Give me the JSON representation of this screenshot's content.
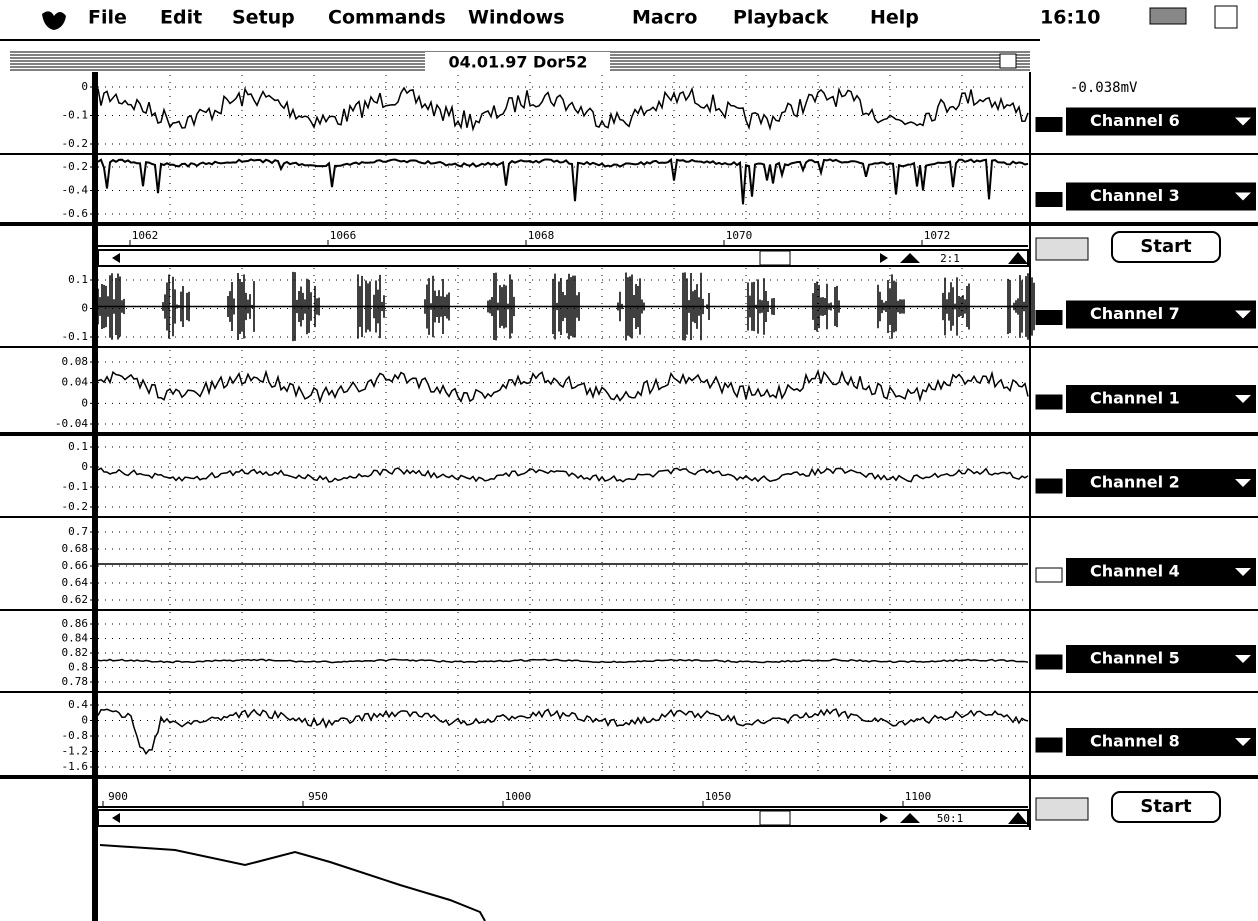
{
  "menu": {
    "items": [
      "File",
      "Edit",
      "Setup",
      "Commands",
      "Windows",
      "Macro",
      "Playback",
      "Help"
    ],
    "clock": "16:10"
  },
  "window": {
    "title": "04.01.97 Dor52"
  },
  "readout": "-0.038mV",
  "channels": [
    {
      "name": "Channel 6",
      "ticks": [
        "0",
        "-0.1",
        "-0.2"
      ]
    },
    {
      "name": "Channel 3",
      "ticks": [
        "-0.2",
        "-0.4",
        "-0.6"
      ]
    },
    {
      "name": "Channel 7",
      "ticks": [
        "0.1",
        "0",
        "-0.1"
      ]
    },
    {
      "name": "Channel 1",
      "ticks": [
        "0.08",
        "0.04",
        "0",
        "-0.04"
      ]
    },
    {
      "name": "Channel 2",
      "ticks": [
        "0.1",
        "0",
        "-0.1",
        "-0.2"
      ]
    },
    {
      "name": "Channel 4",
      "ticks": [
        "0.7",
        "0.68",
        "0.66",
        "0.64",
        "0.62"
      ]
    },
    {
      "name": "Channel 5",
      "ticks": [
        "0.86",
        "0.84",
        "0.82",
        "0.8",
        "0.78"
      ]
    },
    {
      "name": "Channel 8",
      "ticks": [
        "0.4",
        "0",
        "-0.8",
        "-1.2",
        "-1.6"
      ]
    }
  ],
  "time_axes": [
    {
      "labels": [
        "1062",
        "1066",
        "1068",
        "1070",
        "1072"
      ],
      "ratio": "2:1",
      "button": "Start"
    },
    {
      "labels": [
        "900",
        "950",
        "1000",
        "1050",
        "1100"
      ],
      "ratio": "50:1",
      "button": "Start"
    }
  ]
}
